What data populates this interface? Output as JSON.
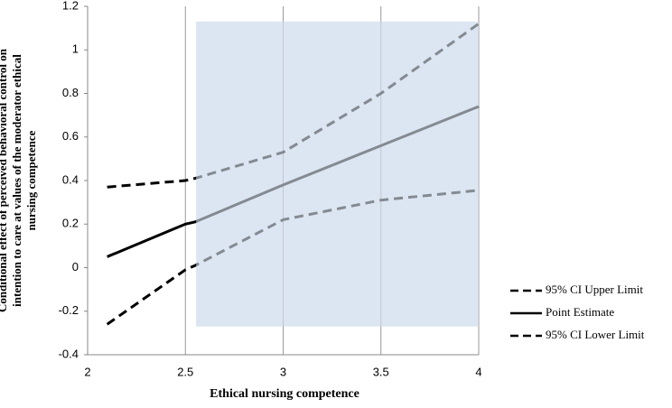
{
  "chart_data": {
    "type": "line",
    "y_label": [
      "Conditional  effect of perceived behavioral control on",
      "intention to care at values of the moderator ethical",
      "nursing competence"
    ],
    "x_label": "Ethical nursing competence",
    "x": [
      2.1,
      2.5,
      2.55,
      3,
      3.5,
      4
    ],
    "series": [
      {
        "name": "95% CI Upper Limit",
        "color": "#000000",
        "dashed": true,
        "values": [
          0.37,
          0.4,
          0.41,
          0.53,
          0.8,
          1.12
        ]
      },
      {
        "name": "Point Estimate",
        "color": "#000000",
        "dashed": false,
        "values": [
          0.05,
          0.2,
          0.21,
          0.38,
          0.56,
          0.74
        ]
      },
      {
        "name": "95% CI Lower Limit",
        "color": "#000000",
        "dashed": true,
        "values": [
          -0.26,
          -0.01,
          0.01,
          0.22,
          0.31,
          0.355
        ]
      }
    ],
    "region": {
      "color": "#dce6f2",
      "x": [
        2.555,
        4
      ],
      "y": [
        -0.27,
        1.13
      ]
    },
    "xlim": [
      2,
      4
    ],
    "xticks": [
      2,
      2.5,
      3,
      3.5,
      4
    ],
    "ylim": [
      -0.4,
      1.2
    ],
    "yticks": [
      -0.4,
      -0.2,
      0,
      0.2,
      0.4,
      0.6,
      0.8,
      1,
      1.2
    ],
    "grid": "x"
  }
}
